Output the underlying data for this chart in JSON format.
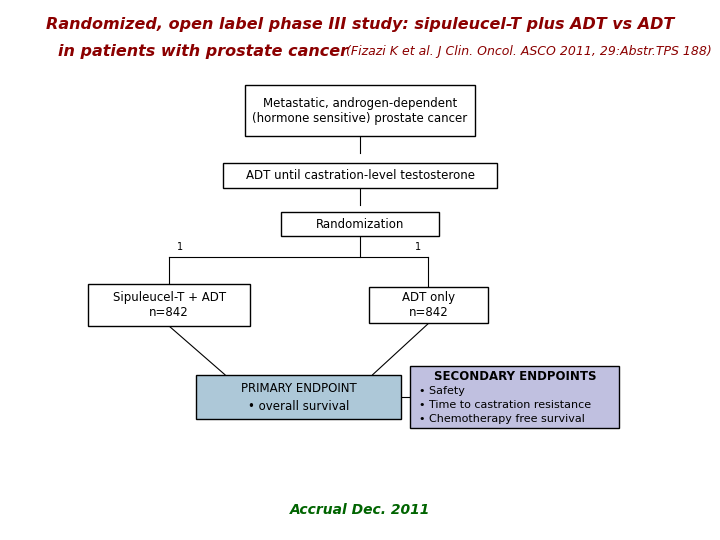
{
  "title_line1": "Randomized, open label phase III study: sipuleucel-T plus ADT vs ADT",
  "title_line2_bold": "in patients with prostate cancer",
  "title_ref": " (Fizazi K et al. J Clin. Oncol. ASCO 2011, 29:Abstr.TPS 188)",
  "title_color": "#8B0000",
  "title_fontsize": 11.5,
  "ref_fontsize": 9.0,
  "box1_text": "Metastatic, androgen-dependent\n(hormone sensitive) prostate cancer",
  "box2_text": "ADT until castration-level testosterone",
  "box3_text": "Randomization",
  "box4_text": "Sipuleucel-T + ADT\nn=842",
  "box5_text": "ADT only\nn=842",
  "box6_line1": "PRIMARY ENDPOINT",
  "box6_line2": "• overall survival",
  "box7_title": "SECONDARY ENDPOINTS",
  "box7_bullets": [
    "• Safety",
    "• Time to castration resistance",
    "• Chemotherapy free survival"
  ],
  "box_edge_color": "#000000",
  "box_face_color": "#ffffff",
  "box6_face_color": "#adc8d8",
  "box7_face_color": "#c0c0e0",
  "footer_text": "Accrual Dec. 2011",
  "footer_color": "#006400",
  "footer_fontsize": 10,
  "text_fontsize": 8.5,
  "background_color": "#ffffff"
}
